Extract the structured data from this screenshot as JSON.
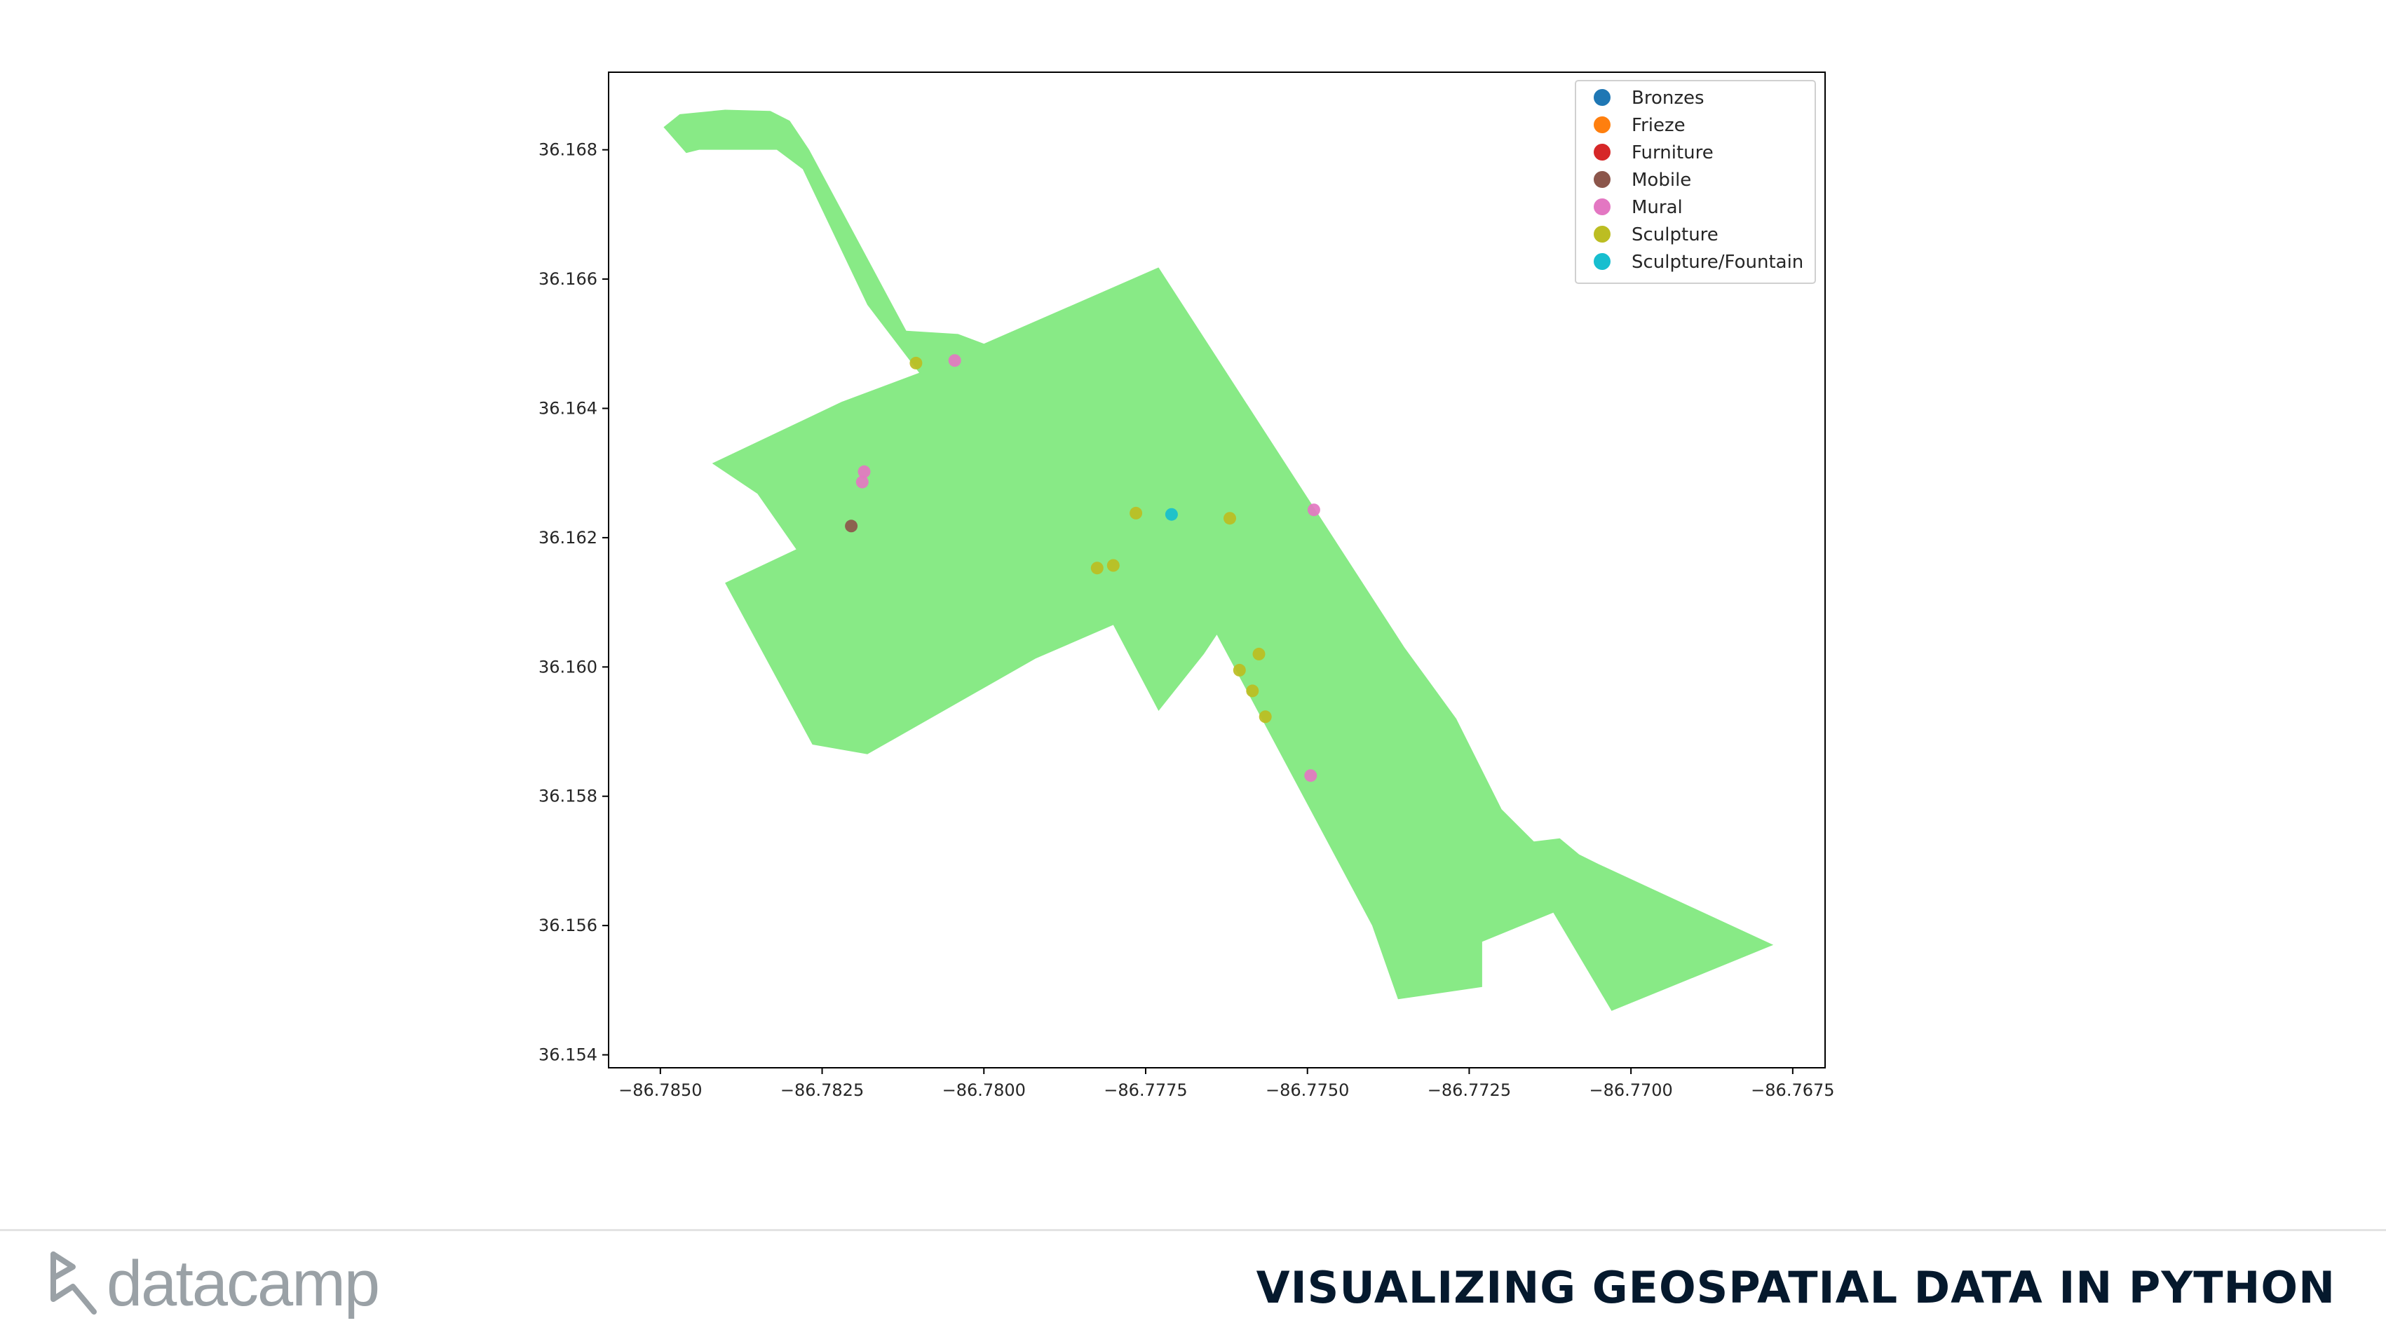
{
  "chart_data": {
    "type": "scatter",
    "title": "",
    "xlabel": "",
    "ylabel": "",
    "xlim": [
      -86.7858,
      -86.767
    ],
    "ylim": [
      36.1538,
      36.1692
    ],
    "x_ticks": [
      -86.785,
      -86.7825,
      -86.78,
      -86.7775,
      -86.775,
      -86.7725,
      -86.77,
      -86.7675
    ],
    "x_tick_labels": [
      "−86.7850",
      "−86.7825",
      "−86.7800",
      "−86.7775",
      "−86.7750",
      "−86.7725",
      "−86.7700",
      "−86.7675"
    ],
    "y_ticks": [
      36.154,
      36.156,
      36.158,
      36.16,
      36.162,
      36.164,
      36.166,
      36.168
    ],
    "y_tick_labels": [
      "36.154",
      "36.156",
      "36.158",
      "36.160",
      "36.162",
      "36.164",
      "36.166",
      "36.168"
    ],
    "grid": false,
    "legend_placement": "top-right",
    "region": {
      "color": "#88ea86",
      "polygon": [
        [
          -86.78495,
          36.16835
        ],
        [
          -86.7847,
          36.16855
        ],
        [
          -86.784,
          36.16862
        ],
        [
          -86.7833,
          36.1686
        ],
        [
          -86.783,
          36.16845
        ],
        [
          -86.7827,
          36.168
        ],
        [
          -86.7812,
          36.1652
        ],
        [
          -86.7804,
          36.16515
        ],
        [
          -86.78,
          36.165
        ],
        [
          -86.7773,
          36.16618
        ],
        [
          -86.7735,
          36.1603
        ],
        [
          -86.7727,
          36.1592
        ],
        [
          -86.772,
          36.1578
        ],
        [
          -86.7715,
          36.1573
        ],
        [
          -86.7711,
          36.15735
        ],
        [
          -86.7708,
          36.1571
        ],
        [
          -86.7705,
          36.15695
        ],
        [
          -86.7678,
          36.1557
        ],
        [
          -86.7703,
          36.15468
        ],
        [
          -86.7712,
          36.1562
        ],
        [
          -86.7723,
          36.15575
        ],
        [
          -86.7723,
          36.15505
        ],
        [
          -86.7736,
          36.15486
        ],
        [
          -86.774,
          36.156
        ],
        [
          -86.7764,
          36.1605
        ],
        [
          -86.7766,
          36.1602
        ],
        [
          -86.7773,
          36.15932
        ],
        [
          -86.778,
          36.16065
        ],
        [
          -86.7792,
          36.16013
        ],
        [
          -86.7818,
          36.15865
        ],
        [
          -86.78265,
          36.1588
        ],
        [
          -86.784,
          36.1613
        ],
        [
          -86.7829,
          36.16182
        ],
        [
          -86.7835,
          36.16268
        ],
        [
          -86.7842,
          36.16315
        ],
        [
          -86.7822,
          36.1641
        ],
        [
          -86.781,
          36.16455
        ],
        [
          -86.7818,
          36.1656
        ],
        [
          -86.7828,
          36.1677
        ],
        [
          -86.7832,
          36.168
        ],
        [
          -86.7844,
          36.168
        ],
        [
          -86.7846,
          36.16795
        ]
      ]
    },
    "series": [
      {
        "name": "Bronzes",
        "color": "#1f77b4",
        "points": []
      },
      {
        "name": "Frieze",
        "color": "#ff7f0e",
        "points": []
      },
      {
        "name": "Furniture",
        "color": "#d62728",
        "points": []
      },
      {
        "name": "Mobile",
        "color": "#8c564b",
        "points": [
          [
            -86.78205,
            36.16218
          ]
        ]
      },
      {
        "name": "Mural",
        "color": "#e377c2",
        "points": [
          [
            -86.78185,
            36.16302
          ],
          [
            -86.78188,
            36.16286
          ],
          [
            -86.78045,
            36.16474
          ],
          [
            -86.7749,
            36.16243
          ],
          [
            -86.77495,
            36.15832
          ]
        ]
      },
      {
        "name": "Sculpture",
        "color": "#bcbd22",
        "points": [
          [
            -86.78105,
            36.1647
          ],
          [
            -86.77765,
            36.16238
          ],
          [
            -86.7762,
            36.1623
          ],
          [
            -86.77825,
            36.16153
          ],
          [
            -86.778,
            36.16157
          ],
          [
            -86.77575,
            36.1602
          ],
          [
            -86.77605,
            36.15995
          ],
          [
            -86.77585,
            36.15963
          ],
          [
            -86.77565,
            36.15923
          ]
        ]
      },
      {
        "name": "Sculpture/Fountain",
        "color": "#17becf",
        "points": [
          [
            -86.7771,
            36.16236
          ]
        ]
      }
    ]
  },
  "footer": {
    "logo_text": "datacamp",
    "course_title": "VISUALIZING GEOSPATIAL DATA IN PYTHON"
  }
}
